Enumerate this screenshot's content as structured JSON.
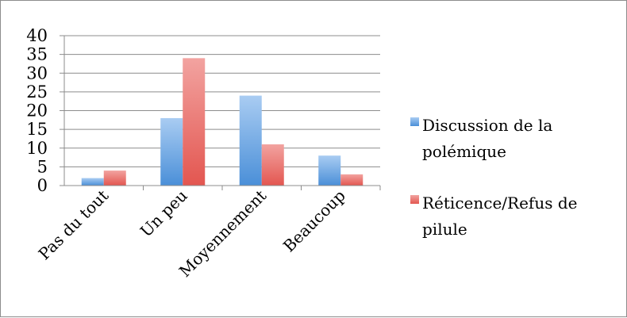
{
  "chart_data": {
    "type": "bar",
    "title": "",
    "xlabel": "",
    "ylabel": "",
    "categories": [
      "Pas du tout",
      "Un peu",
      "Moyennement",
      "Beaucoup"
    ],
    "series": [
      {
        "name_lines": [
          "Discussion de la",
          "polémique"
        ],
        "values": [
          2,
          18,
          24,
          8
        ],
        "color": "#5b9bd5",
        "color_light": "#a9ccf2",
        "color_dark": "#4a8fd8"
      },
      {
        "name_lines": [
          "Réticence/Refus de",
          "pilule"
        ],
        "values": [
          4,
          34,
          11,
          3
        ],
        "color": "#e8605c",
        "color_light": "#f2a3a0",
        "color_dark": "#e35650"
      }
    ],
    "ylim": [
      0,
      40
    ],
    "yticks": [
      "0",
      "5",
      "10",
      "15",
      "20",
      "25",
      "30",
      "35",
      "40"
    ],
    "grid": true,
    "legend_position": "right"
  }
}
